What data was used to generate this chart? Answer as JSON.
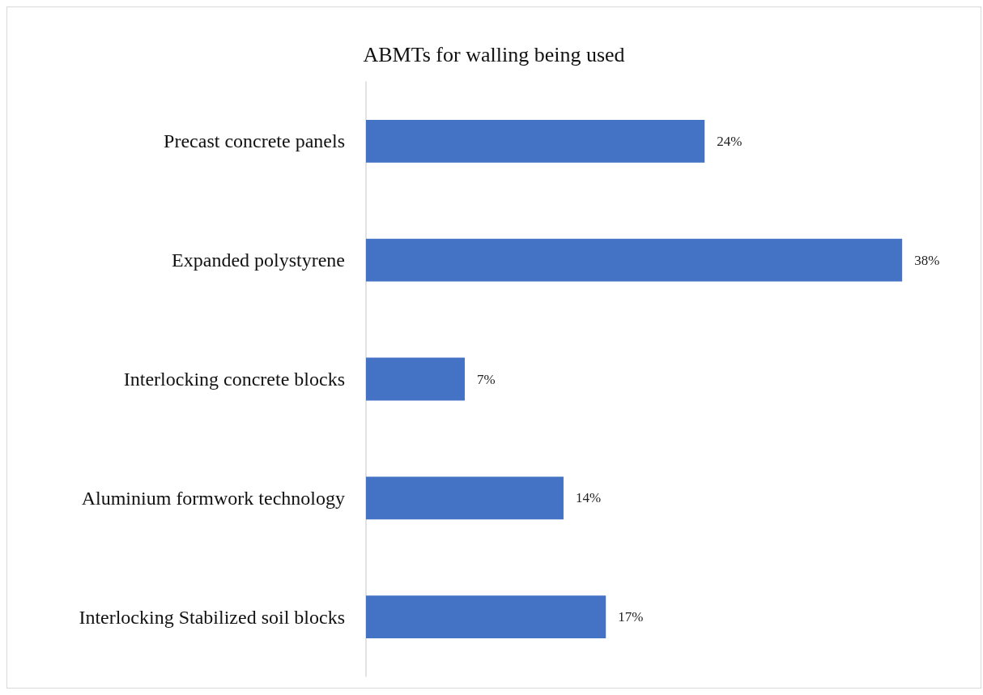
{
  "chart_data": {
    "type": "bar",
    "orientation": "horizontal",
    "title": "ABMTs for walling being used",
    "categories": [
      "Precast concrete panels",
      "Expanded polystyrene",
      "Interlocking concrete blocks",
      "Aluminium formwork technology",
      "Interlocking Stabilized soil blocks"
    ],
    "values": [
      24,
      38,
      7,
      14,
      17
    ],
    "value_labels": [
      "24%",
      "38%",
      "7%",
      "14%",
      "17%"
    ],
    "color": "#4472c4"
  }
}
